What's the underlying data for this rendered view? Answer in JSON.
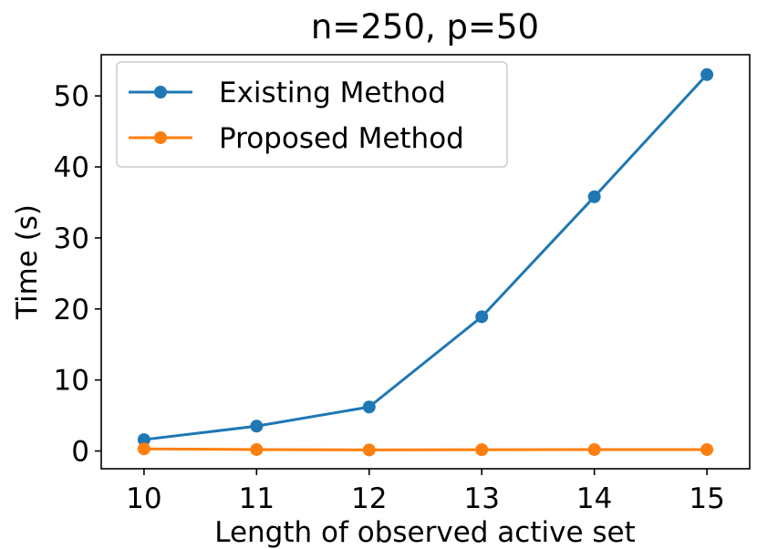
{
  "chart_data": {
    "type": "line",
    "title": "n=250, p=50",
    "xlabel": "Length of observed active set",
    "ylabel": "Time (s)",
    "x": [
      10,
      11,
      12,
      13,
      14,
      15
    ],
    "xlim": [
      9.62,
      15.38
    ],
    "ylim": [
      -2.5,
      55.8
    ],
    "xticks": [
      10,
      11,
      12,
      13,
      14,
      15
    ],
    "yticks": [
      0,
      10,
      20,
      30,
      40,
      50
    ],
    "grid": false,
    "legend_position": "upper-left",
    "series": [
      {
        "name": "Existing Method",
        "color": "#1f77b4",
        "values": [
          1.6,
          3.5,
          6.2,
          18.9,
          35.8,
          53.0
        ]
      },
      {
        "name": "Proposed Method",
        "color": "#ff7f0e",
        "values": [
          0.3,
          0.2,
          0.15,
          0.18,
          0.2,
          0.2
        ]
      }
    ]
  }
}
